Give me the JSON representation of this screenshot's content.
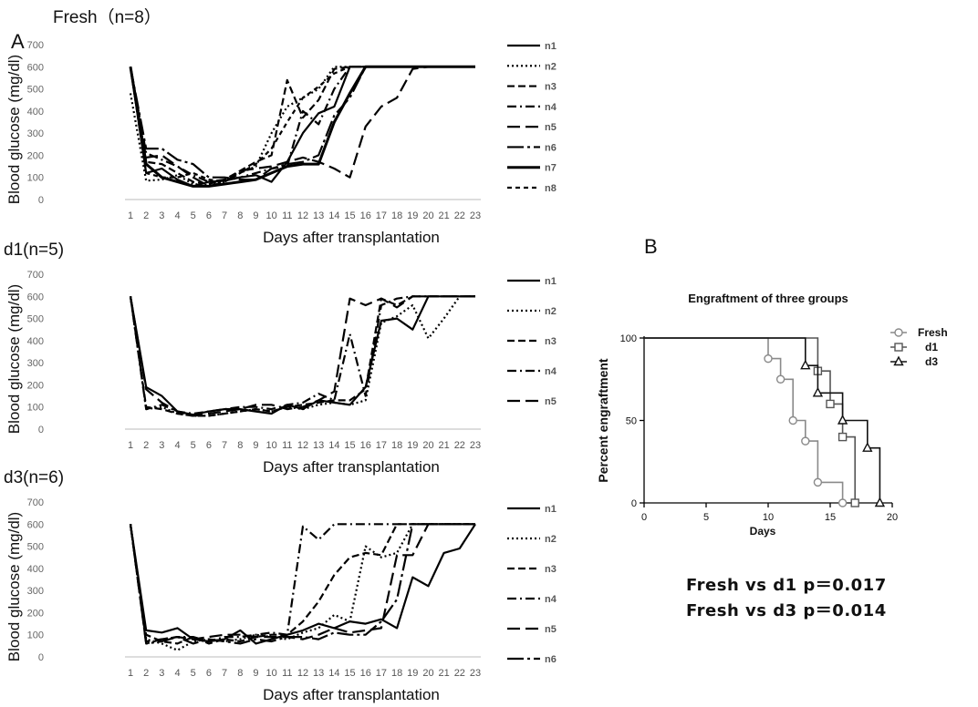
{
  "panel_labels": {
    "a": "A",
    "b": "B"
  },
  "stats": {
    "line1": "Fresh vs d1   p＝0.017",
    "line2": "Fresh vs d3   p＝0.014"
  },
  "chart_data": [
    {
      "type": "line",
      "title": "Fresh（n=8）",
      "xlabel": "Days after transplantation",
      "ylabel": "Blood  glucose  (mg/dl)",
      "x": [
        1,
        2,
        3,
        4,
        5,
        6,
        7,
        8,
        9,
        10,
        11,
        12,
        13,
        14,
        15,
        16,
        17,
        18,
        19,
        20,
        21,
        22,
        23
      ],
      "ylim": [
        0,
        700
      ],
      "yticks": [
        0,
        100,
        200,
        300,
        400,
        500,
        600,
        700
      ],
      "legend_position": "right",
      "series": [
        {
          "name": "n1",
          "style": "solid",
          "values": [
            600,
            120,
            140,
            90,
            60,
            80,
            85,
            100,
            110,
            80,
            170,
            300,
            390,
            420,
            600,
            600,
            600,
            600,
            600,
            600,
            600,
            600,
            600
          ]
        },
        {
          "name": "n2",
          "style": "dotted",
          "values": [
            480,
            85,
            90,
            110,
            70,
            65,
            80,
            120,
            150,
            300,
            420,
            460,
            500,
            600,
            600,
            600,
            600,
            600,
            600,
            600,
            600,
            600,
            600
          ]
        },
        {
          "name": "n3",
          "style": "dashed",
          "values": [
            600,
            170,
            160,
            120,
            80,
            70,
            90,
            130,
            170,
            200,
            540,
            370,
            450,
            590,
            600,
            600,
            600,
            600,
            600,
            600,
            600,
            600,
            600
          ]
        },
        {
          "name": "n4",
          "style": "dashdot",
          "values": [
            600,
            210,
            180,
            150,
            110,
            80,
            90,
            100,
            120,
            140,
            150,
            400,
            340,
            500,
            600,
            600,
            600,
            600,
            600,
            600,
            600,
            600,
            600
          ]
        },
        {
          "name": "n5",
          "style": "longdash",
          "values": [
            600,
            190,
            200,
            150,
            100,
            60,
            80,
            130,
            140,
            150,
            170,
            190,
            170,
            140,
            100,
            330,
            420,
            460,
            590,
            600,
            600,
            600,
            600
          ]
        },
        {
          "name": "n6",
          "style": "dashdot-long",
          "values": [
            600,
            230,
            230,
            180,
            160,
            100,
            100,
            90,
            90,
            140,
            160,
            170,
            200,
            380,
            460,
            600,
            600,
            600,
            600,
            600,
            600,
            600,
            600
          ]
        },
        {
          "name": "n7",
          "style": "solid-heavy",
          "values": [
            600,
            160,
            100,
            80,
            60,
            60,
            70,
            80,
            90,
            120,
            150,
            160,
            160,
            350,
            480,
            600,
            600,
            600,
            600,
            600,
            600,
            600,
            600
          ]
        },
        {
          "name": "n8",
          "style": "shortdash",
          "values": [
            600,
            120,
            100,
            100,
            120,
            90,
            80,
            120,
            160,
            230,
            350,
            460,
            510,
            570,
            600,
            600,
            600,
            600,
            600,
            600,
            600,
            600,
            600
          ]
        }
      ]
    },
    {
      "type": "line",
      "title": "d1(n=5)",
      "xlabel": "Days after transplantation",
      "ylabel": "Blood  glucose  (mg/dl)",
      "x": [
        1,
        2,
        3,
        4,
        5,
        6,
        7,
        8,
        9,
        10,
        11,
        12,
        13,
        14,
        15,
        16,
        17,
        18,
        19,
        20,
        21,
        22,
        23
      ],
      "ylim": [
        0,
        700
      ],
      "yticks": [
        0,
        100,
        200,
        300,
        400,
        500,
        600,
        700
      ],
      "legend_position": "right",
      "series": [
        {
          "name": "n1",
          "style": "solid",
          "values": [
            600,
            190,
            150,
            80,
            65,
            80,
            90,
            90,
            80,
            70,
            110,
            90,
            130,
            120,
            110,
            190,
            490,
            500,
            450,
            600,
            600,
            600,
            600
          ]
        },
        {
          "name": "n2",
          "style": "dotted",
          "values": [
            600,
            90,
            100,
            70,
            60,
            60,
            70,
            80,
            90,
            80,
            100,
            90,
            110,
            120,
            110,
            130,
            480,
            510,
            560,
            410,
            500,
            600,
            600
          ]
        },
        {
          "name": "n3",
          "style": "dashed",
          "values": [
            600,
            100,
            90,
            70,
            60,
            60,
            70,
            80,
            90,
            80,
            100,
            110,
            120,
            130,
            130,
            180,
            590,
            560,
            600,
            600,
            600,
            600,
            600
          ]
        },
        {
          "name": "n4",
          "style": "dashdot",
          "values": [
            600,
            90,
            110,
            80,
            70,
            80,
            90,
            100,
            100,
            90,
            110,
            120,
            160,
            130,
            430,
            150,
            560,
            590,
            600,
            600,
            600,
            600,
            600
          ]
        },
        {
          "name": "n5",
          "style": "longdash",
          "values": [
            600,
            180,
            120,
            80,
            60,
            70,
            80,
            90,
            110,
            110,
            90,
            100,
            130,
            170,
            590,
            560,
            590,
            550,
            600,
            600,
            600,
            600,
            600
          ]
        }
      ]
    },
    {
      "type": "line",
      "title": "d3(n=6)",
      "xlabel": "Days after transplantation",
      "ylabel": "Blood  glucose  (mg/dl)",
      "x": [
        1,
        2,
        3,
        4,
        5,
        6,
        7,
        8,
        9,
        10,
        11,
        12,
        13,
        14,
        15,
        16,
        17,
        18,
        19,
        20,
        21,
        22,
        23
      ],
      "ylim": [
        0,
        700
      ],
      "yticks": [
        0,
        100,
        200,
        300,
        400,
        500,
        600,
        700
      ],
      "legend_position": "right",
      "series": [
        {
          "name": "n1",
          "style": "solid",
          "values": [
            600,
            120,
            110,
            130,
            80,
            70,
            80,
            120,
            60,
            80,
            100,
            120,
            150,
            130,
            160,
            150,
            170,
            130,
            360,
            320,
            470,
            490,
            600
          ]
        },
        {
          "name": "n2",
          "style": "dotted",
          "values": [
            600,
            80,
            60,
            30,
            70,
            80,
            70,
            80,
            100,
            90,
            80,
            110,
            130,
            190,
            160,
            500,
            450,
            470,
            600,
            600,
            600,
            600,
            600
          ]
        },
        {
          "name": "n3",
          "style": "dashed",
          "values": [
            600,
            100,
            70,
            60,
            90,
            60,
            80,
            70,
            90,
            100,
            100,
            160,
            250,
            370,
            450,
            470,
            460,
            600,
            600,
            600,
            600,
            600,
            600
          ]
        },
        {
          "name": "n4",
          "style": "dashdot",
          "values": [
            600,
            60,
            80,
            90,
            90,
            70,
            90,
            90,
            100,
            110,
            100,
            590,
            530,
            600,
            600,
            600,
            600,
            600,
            600,
            600,
            600,
            600,
            600
          ]
        },
        {
          "name": "n5",
          "style": "longdash",
          "values": [
            600,
            70,
            80,
            90,
            80,
            90,
            100,
            100,
            90,
            90,
            90,
            80,
            100,
            130,
            110,
            120,
            130,
            460,
            460,
            600,
            600,
            600,
            600
          ]
        },
        {
          "name": "n6",
          "style": "dashdot-long",
          "values": [
            600,
            60,
            70,
            90,
            60,
            80,
            70,
            60,
            80,
            70,
            90,
            90,
            80,
            110,
            100,
            100,
            160,
            260,
            600,
            600,
            600,
            600,
            600
          ]
        }
      ]
    },
    {
      "type": "line",
      "subtype": "survival-step",
      "title": "Engraftment of three groups",
      "xlabel": "Days",
      "ylabel": "Percent engraftment",
      "xlim": [
        0,
        20
      ],
      "ylim": [
        0,
        100
      ],
      "xticks": [
        0,
        5,
        10,
        15,
        20
      ],
      "yticks": [
        0,
        50,
        100
      ],
      "legend_position": "top-right",
      "series": [
        {
          "name": "Fresh",
          "marker": "circle",
          "color": "#8a8a8a",
          "steps": [
            [
              0,
              100
            ],
            [
              10,
              87.5
            ],
            [
              11,
              75
            ],
            [
              12,
              50
            ],
            [
              13,
              37.5
            ],
            [
              14,
              12.5
            ],
            [
              16,
              0
            ]
          ]
        },
        {
          "name": "d1",
          "marker": "square",
          "color": "#555555",
          "steps": [
            [
              0,
              100
            ],
            [
              14,
              80
            ],
            [
              15,
              60
            ],
            [
              16,
              40
            ],
            [
              17,
              0
            ]
          ]
        },
        {
          "name": "d3",
          "marker": "triangle",
          "color": "#111111",
          "steps": [
            [
              0,
              100
            ],
            [
              13,
              83.3
            ],
            [
              14,
              66.7
            ],
            [
              16,
              50
            ],
            [
              18,
              33.3
            ],
            [
              19,
              0
            ]
          ]
        }
      ]
    }
  ]
}
